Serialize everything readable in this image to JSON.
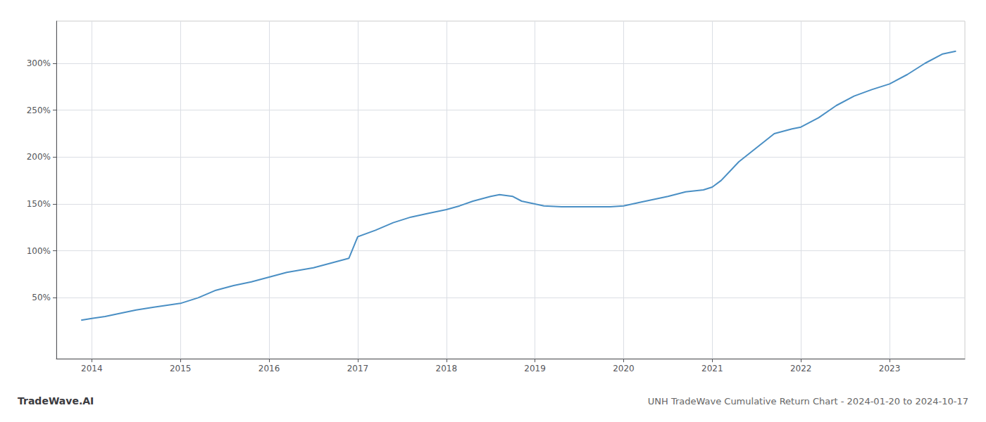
{
  "chart_data": {
    "type": "line",
    "title": "UNH TradeWave Cumulative Return Chart - 2024-01-20 to 2024-10-17",
    "annotations": [
      "TradeWave.AI"
    ],
    "color": "#4a8fc4",
    "grid": true,
    "xlim": [
      2013.6,
      2023.85
    ],
    "xticks": [
      2014,
      2015,
      2016,
      2017,
      2018,
      2019,
      2020,
      2021,
      2022,
      2023
    ],
    "ylim": [
      -15,
      345
    ],
    "yticks": [
      {
        "value": 50,
        "label": "50%"
      },
      {
        "value": 100,
        "label": "100%"
      },
      {
        "value": 150,
        "label": "150%"
      },
      {
        "value": 200,
        "label": "200%"
      },
      {
        "value": 250,
        "label": "250%"
      },
      {
        "value": 300,
        "label": "300%"
      }
    ],
    "x": [
      2013.88,
      2014.0,
      2014.15,
      2014.3,
      2014.5,
      2014.7,
      2014.85,
      2015.0,
      2015.2,
      2015.4,
      2015.6,
      2015.8,
      2016.0,
      2016.2,
      2016.5,
      2016.7,
      2016.9,
      2017.0,
      2017.2,
      2017.4,
      2017.6,
      2017.8,
      2018.0,
      2018.15,
      2018.3,
      2018.5,
      2018.6,
      2018.75,
      2018.85,
      2019.0,
      2019.1,
      2019.3,
      2019.5,
      2019.7,
      2019.85,
      2020.0,
      2020.2,
      2020.5,
      2020.7,
      2020.9,
      2021.0,
      2021.1,
      2021.3,
      2021.5,
      2021.7,
      2021.9,
      2022.0,
      2022.2,
      2022.4,
      2022.6,
      2022.8,
      2023.0,
      2023.2,
      2023.4,
      2023.6,
      2023.75
    ],
    "values": [
      26,
      28,
      30,
      33,
      37,
      40,
      42,
      44,
      50,
      58,
      63,
      67,
      72,
      77,
      82,
      87,
      92,
      115,
      122,
      130,
      136,
      140,
      144,
      148,
      153,
      158,
      160,
      158,
      153,
      150,
      148,
      147,
      147,
      147,
      147,
      148,
      152,
      158,
      163,
      165,
      168,
      175,
      195,
      210,
      225,
      230,
      232,
      242,
      255,
      265,
      272,
      278,
      288,
      300,
      310,
      313
    ]
  }
}
